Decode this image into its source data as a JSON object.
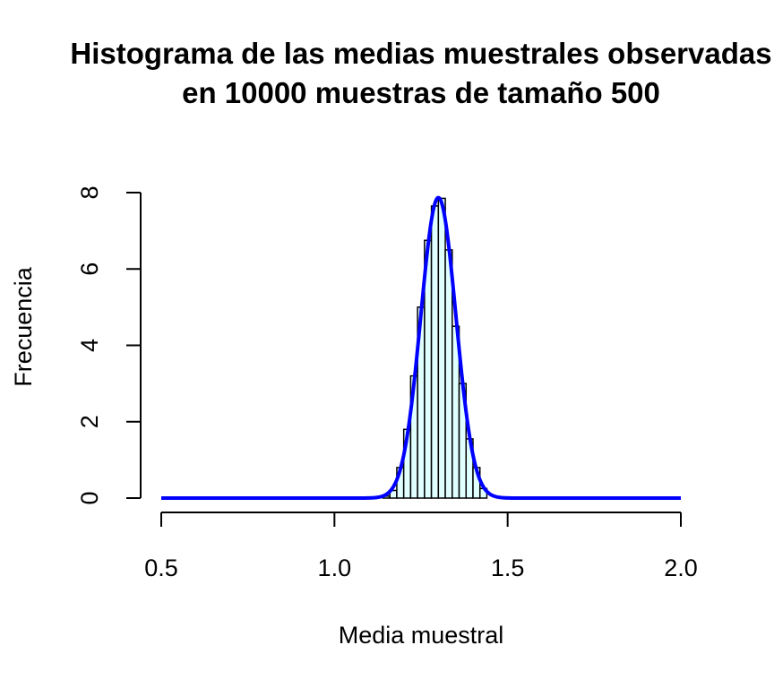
{
  "chart_data": {
    "type": "bar",
    "title_line1": "Histograma de las medias muestrales observadas",
    "title_line2": "en 10000 muestras de tamaño 500",
    "xlabel": "Media muestral",
    "ylabel": "Frecuencia",
    "xlim": [
      0.5,
      2.0
    ],
    "ylim": [
      0,
      8
    ],
    "x_ticks": [
      "0.5",
      "1.0",
      "1.5",
      "2.0"
    ],
    "y_ticks": [
      "0",
      "2",
      "4",
      "6",
      "8"
    ],
    "bin_width": 0.02,
    "bins": [
      {
        "x0": 1.14,
        "x1": 1.16,
        "density": 0.05
      },
      {
        "x0": 1.16,
        "x1": 1.18,
        "density": 0.2
      },
      {
        "x0": 1.18,
        "x1": 1.2,
        "density": 0.8
      },
      {
        "x0": 1.2,
        "x1": 1.22,
        "density": 1.8
      },
      {
        "x0": 1.22,
        "x1": 1.24,
        "density": 3.2
      },
      {
        "x0": 1.24,
        "x1": 1.26,
        "density": 5.0
      },
      {
        "x0": 1.26,
        "x1": 1.28,
        "density": 6.75
      },
      {
        "x0": 1.28,
        "x1": 1.3,
        "density": 7.65
      },
      {
        "x0": 1.3,
        "x1": 1.32,
        "density": 7.85
      },
      {
        "x0": 1.32,
        "x1": 1.34,
        "density": 6.5
      },
      {
        "x0": 1.34,
        "x1": 1.36,
        "density": 4.5
      },
      {
        "x0": 1.36,
        "x1": 1.38,
        "density": 3.0
      },
      {
        "x0": 1.38,
        "x1": 1.4,
        "density": 1.55
      },
      {
        "x0": 1.4,
        "x1": 1.42,
        "density": 0.8
      },
      {
        "x0": 1.42,
        "x1": 1.44,
        "density": 0.25
      }
    ],
    "density_curve": {
      "type": "normal",
      "mean": 1.3,
      "sd": 0.0507,
      "x_range": [
        0.5,
        2.0
      ],
      "color": "#0000ff"
    },
    "bar_fill": "#e0ffff",
    "bar_stroke": "#000000",
    "grid": false,
    "legend": "none"
  }
}
